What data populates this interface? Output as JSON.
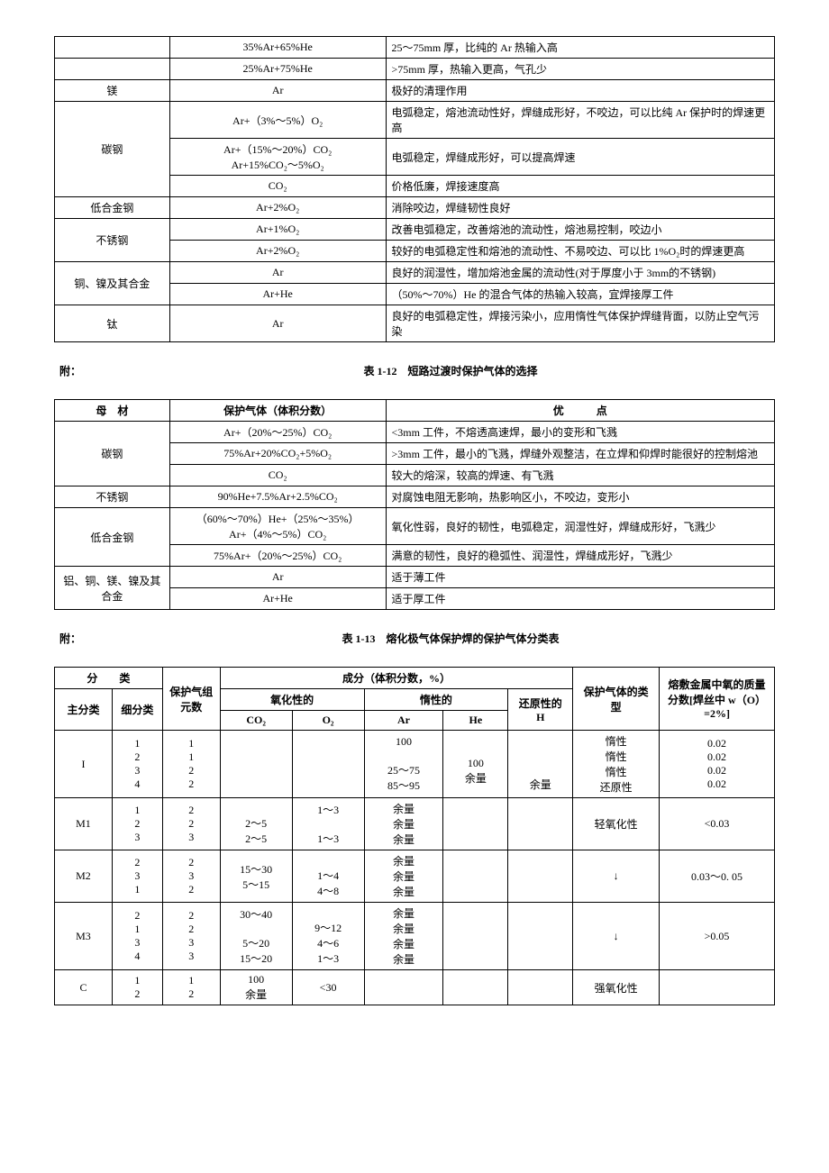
{
  "table1": {
    "rows": [
      {
        "mat": "",
        "gas": "35%Ar+65%He",
        "note": "25～75mm 厚，比纯的 Ar 热输入高",
        "rowspan": 1,
        "showMat": false
      },
      {
        "mat": "",
        "gas": "25%Ar+75%He",
        "note": ">75mm 厚，热输入更高，气孔少",
        "rowspan": 1,
        "showMat": false
      },
      {
        "mat": "镁",
        "gas": "Ar",
        "note": "极好的清理作用",
        "rowspan": 1,
        "showMat": true
      },
      {
        "mat": "碳钢",
        "gas": "Ar+（3%～5%）O₂",
        "note": "电弧稳定，熔池流动性好，焊缝成形好，不咬边，可以比纯 Ar 保护时的焊速更高",
        "rowspan": 3,
        "showMat": true
      },
      {
        "mat": "",
        "gas": "Ar+（15%～20%）CO₂\nAr+15%CO₂～5%O₂",
        "note": "电弧稳定，焊缝成形好，可以提高焊速",
        "rowspan": 0,
        "showMat": false
      },
      {
        "mat": "",
        "gas": "CO₂",
        "note": "价格低廉，焊接速度高",
        "rowspan": 0,
        "showMat": false
      },
      {
        "mat": "低合金钢",
        "gas": "Ar+2%O₂",
        "note": "消除咬边，焊缝韧性良好",
        "rowspan": 1,
        "showMat": true
      },
      {
        "mat": "不锈钢",
        "gas": "Ar+1%O₂",
        "note": "改善电弧稳定，改善熔池的流动性，熔池易控制，咬边小",
        "rowspan": 2,
        "showMat": true
      },
      {
        "mat": "",
        "gas": "Ar+2%O₂",
        "note": "较好的电弧稳定性和熔池的流动性、不易咬边、可以比 1%O₂时的焊速更高",
        "rowspan": 0,
        "showMat": false
      },
      {
        "mat": "铜、镍及其合金",
        "gas": "Ar",
        "note": "良好的润湿性，增加熔池金属的流动性(对于厚度小于 3mm的不锈钢)",
        "rowspan": 2,
        "showMat": true
      },
      {
        "mat": "",
        "gas": "Ar+He",
        "note": "（50%～70%）He 的混合气体的热输入较高，宜焊接厚工件",
        "rowspan": 0,
        "showMat": false
      },
      {
        "mat": "钛",
        "gas": "Ar",
        "note": "良好的电弧稳定性，焊接污染小，应用惰性气体保护焊缝背面，以防止空气污染",
        "rowspan": 1,
        "showMat": true
      }
    ]
  },
  "table2": {
    "caption_prefix": "附：",
    "caption_title": "表 1-12　短路过渡时保护气体的选择",
    "head": {
      "c1": "母　材",
      "c2": "保护气体（体积分数）",
      "c3": "优　　　点"
    },
    "rows": [
      {
        "mat": "碳钢",
        "gas": "Ar+（20%～25%）CO₂",
        "note": "<3mm 工件，不熔透高速焊，最小的变形和飞溅",
        "rowspan": 3,
        "showMat": true
      },
      {
        "mat": "",
        "gas": "75%Ar+20%CO₂+5%O₂",
        "note": ">3mm 工件，最小的飞溅，焊缝外观整洁，在立焊和仰焊时能很好的控制熔池",
        "rowspan": 0,
        "showMat": false
      },
      {
        "mat": "",
        "gas": "CO₂",
        "note": "较大的熔深，较高的焊速、有飞溅",
        "rowspan": 0,
        "showMat": false
      },
      {
        "mat": "不锈钢",
        "gas": "90%He+7.5%Ar+2.5%CO₂",
        "note": "对腐蚀电阻无影响，热影响区小，不咬边，变形小",
        "rowspan": 1,
        "showMat": true
      },
      {
        "mat": "低合金钢",
        "gas": "（60%～70%）He+（25%～35%）Ar+（4%～5%）CO₂",
        "note": "氧化性弱，良好的韧性，电弧稳定，润湿性好，焊缝成形好，飞溅少",
        "rowspan": 2,
        "showMat": true
      },
      {
        "mat": "",
        "gas": "75%Ar+（20%～25%）CO₂",
        "note": "满意的韧性，良好的稳弧性、润湿性，焊缝成形好，飞溅少",
        "rowspan": 0,
        "showMat": false
      },
      {
        "mat": "铝、铜、镁、镍及其合金",
        "gas": "Ar",
        "note": "适于薄工件",
        "rowspan": 2,
        "showMat": true
      },
      {
        "mat": "",
        "gas": "Ar+He",
        "note": "适于厚工件",
        "rowspan": 0,
        "showMat": false
      }
    ]
  },
  "table3": {
    "caption_prefix": "附：",
    "caption_title": "表 1-13　熔化极气体保护焊的保护气体分类表",
    "head": {
      "class": "分　　类",
      "main": "主分类",
      "sub": "细分类",
      "groups": "保护气组元数",
      "comp": "成分（体积分数，%）",
      "oxid": "氧化性的",
      "inert": "惰性的",
      "reduce": "还原性的 H",
      "co2": "CO₂",
      "o2": "O₂",
      "ar": "Ar",
      "he": "He",
      "gasType": "保护气体的类型",
      "wO": "熔敷金属中氧的质量分数[焊丝中 w（O）=2%]"
    },
    "rows": [
      {
        "main": "I",
        "sub": "1\n2\n3\n4",
        "grp": "1\n1\n2\n2",
        "co2": "",
        "o2": "",
        "ar": "100\n\n25～75\n85～95",
        "he": "\n100\n余量",
        "h": "\n\n\n余量",
        "type": "惰性\n惰性\n惰性\n还原性",
        "wO": "0.02\n0.02\n0.02\n0.02"
      },
      {
        "main": "M1",
        "sub": "1\n2\n3",
        "grp": "2\n2\n3",
        "co2": "\n2～5\n2～5",
        "o2": "1～3\n\n1～3",
        "ar": "余量\n余量\n余量",
        "he": "",
        "h": "",
        "type": "轻氧化性",
        "wO": "<0.03"
      },
      {
        "main": "M2",
        "sub": "2\n3\n1",
        "grp": "2\n3\n2",
        "co2": "15～30\n5～15",
        "o2": "\n1～4\n4～8",
        "ar": "余量\n余量\n余量",
        "he": "",
        "h": "",
        "type": "↓",
        "wO": "0.03～0. 05"
      },
      {
        "main": "M3",
        "sub": "2\n1\n3\n4",
        "grp": "2\n2\n3\n3",
        "co2": "30～40\n\n5～20\n15～20",
        "o2": "\n9～12\n4～6\n1～3",
        "ar": "余量\n余量\n余量\n余量",
        "he": "",
        "h": "",
        "type": "↓",
        "wO": ">0.05"
      },
      {
        "main": "C",
        "sub": "1\n2",
        "grp": "1\n2",
        "co2": "100\n余量",
        "o2": "<30",
        "ar": "",
        "he": "",
        "h": "",
        "type": "强氧化性",
        "wO": ""
      }
    ]
  }
}
